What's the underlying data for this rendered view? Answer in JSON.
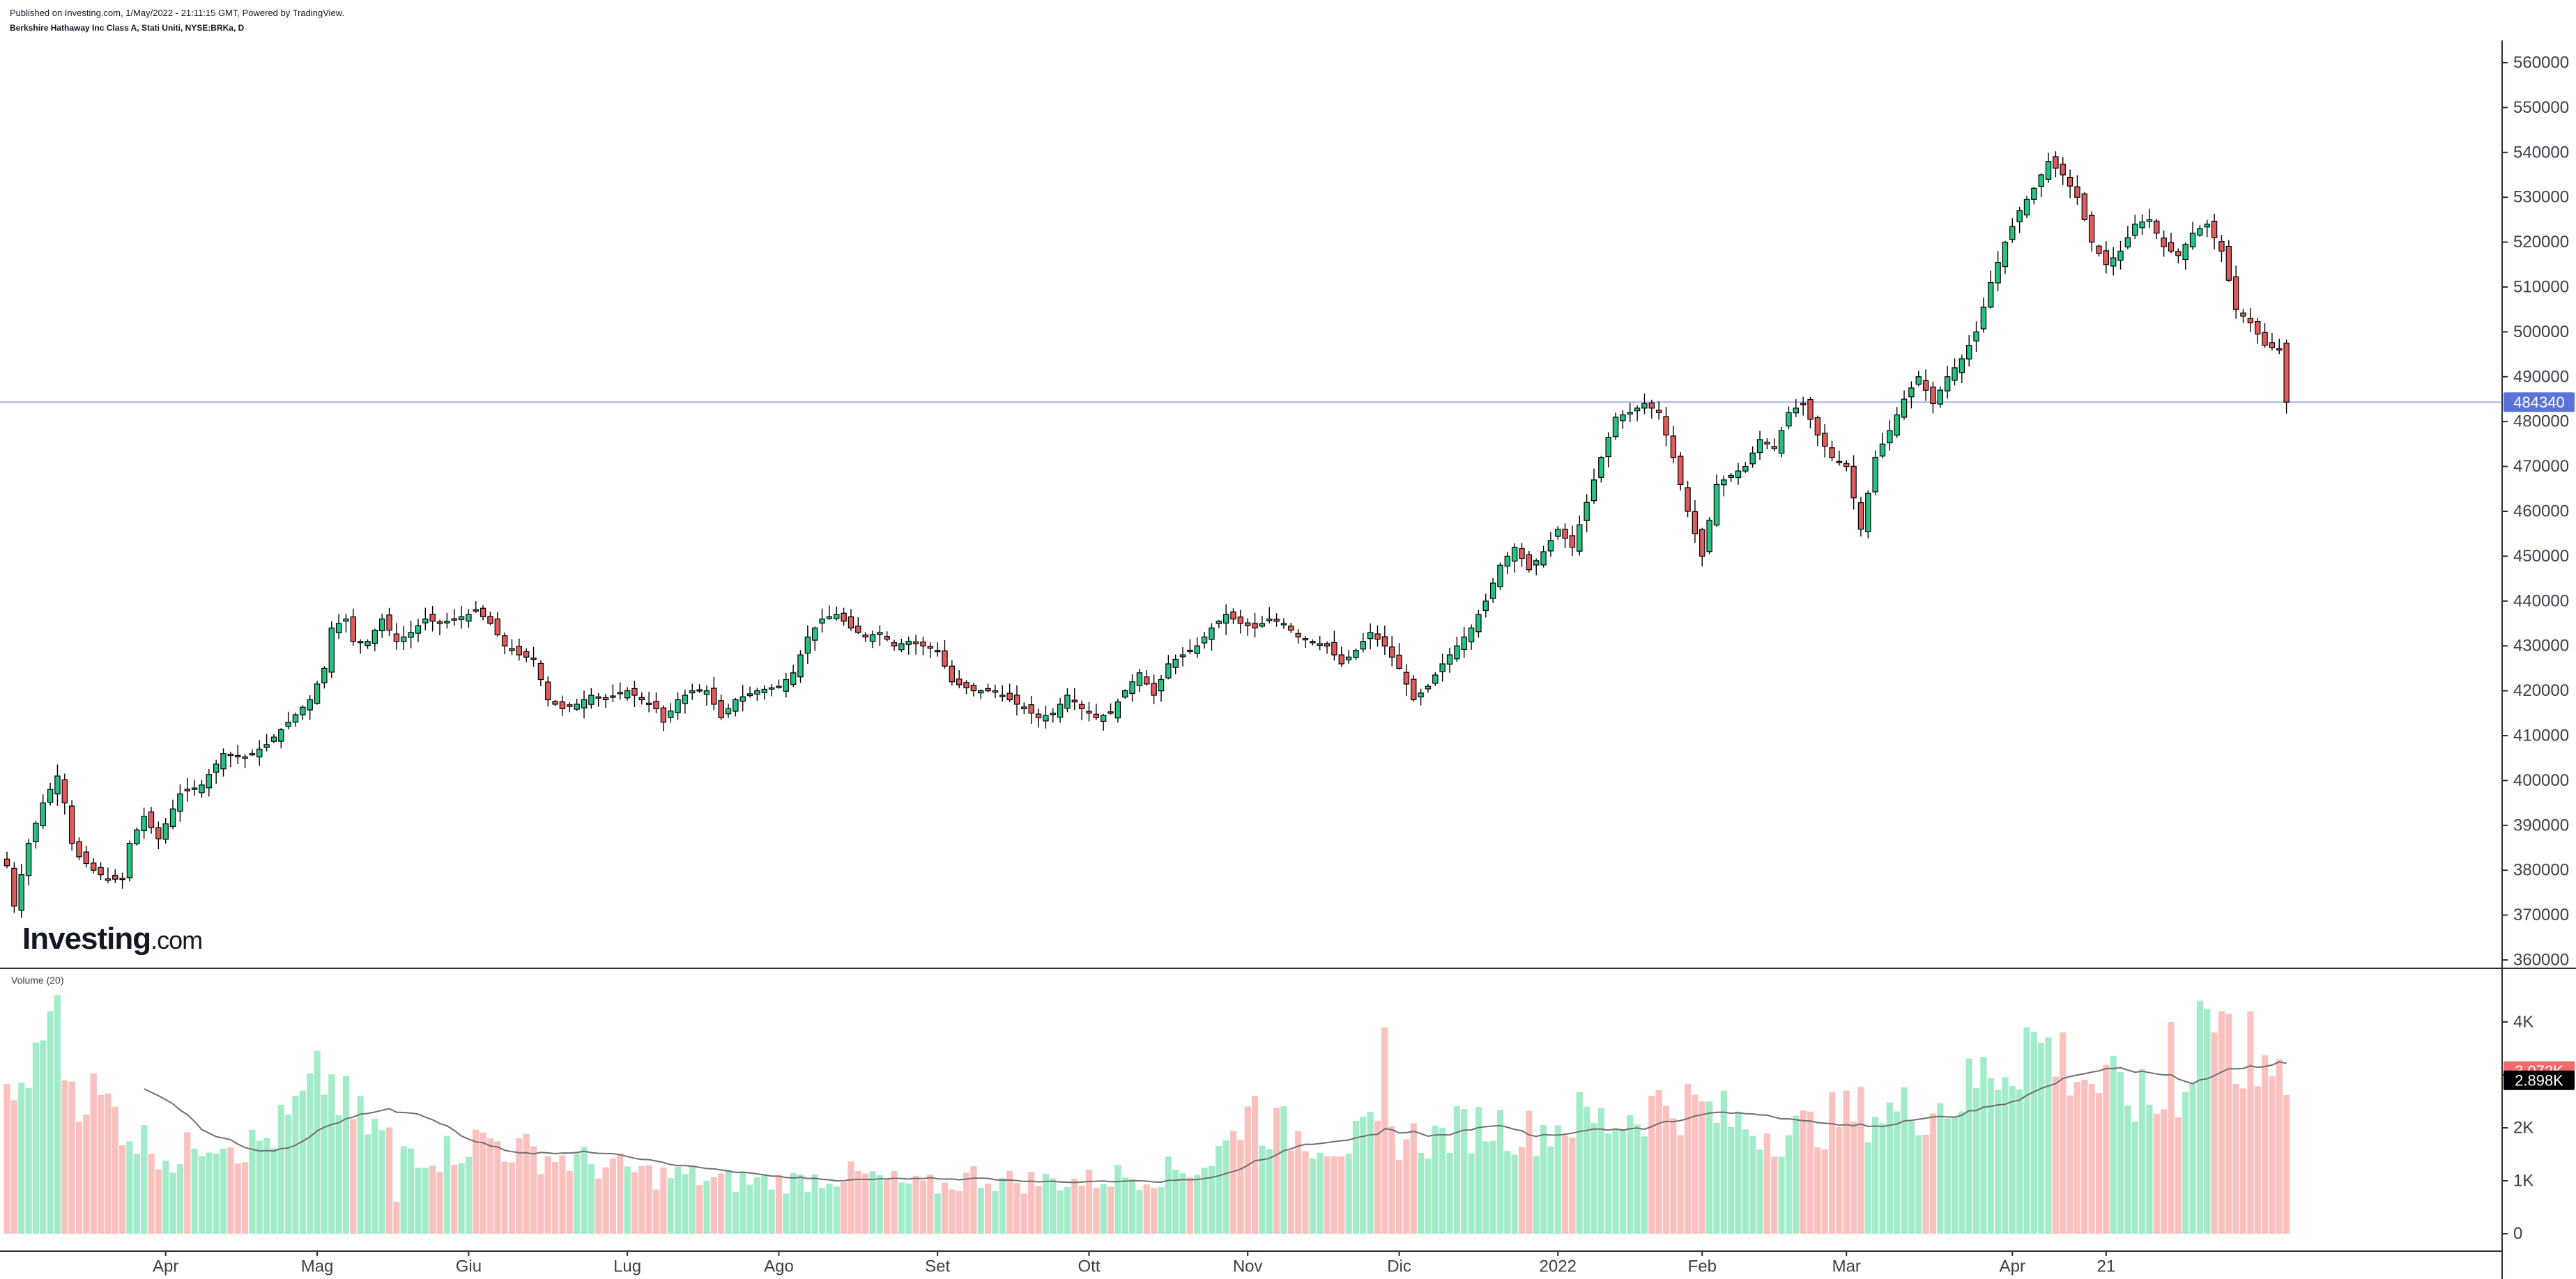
{
  "header": {
    "published": "Published on Investing.com, 1/May/2022 - 21:11:15 GMT, Powered by TradingView.",
    "symbol": "Berkshire Hathaway Inc Class A, Stati Uniti, NYSE:BRKa, D"
  },
  "logo": {
    "brand": "Investing",
    "suffix": ".com"
  },
  "volume_pane": {
    "title": "Volume (20)"
  },
  "colors": {
    "up": "#26c281",
    "down": "#e05c5c",
    "up_volume": "#a3ecc9",
    "down_volume": "#fbc1bf",
    "last_price_line": "#6b7bd8",
    "last_price_badge": "#5b72d6",
    "volume_badge_red": "#f06b6b",
    "volume_badge_black": "#000000"
  },
  "chart_data": {
    "type": "candlestick",
    "price_axis": {
      "min": 360000,
      "max": 560000,
      "ticks": [
        360000,
        370000,
        380000,
        390000,
        400000,
        410000,
        420000,
        430000,
        440000,
        450000,
        460000,
        470000,
        480000,
        490000,
        500000,
        510000,
        520000,
        530000,
        540000,
        550000,
        560000
      ]
    },
    "volume_axis": {
      "ticks": [
        {
          "value": 0,
          "label": "0"
        },
        {
          "value": 1000,
          "label": "1K"
        },
        {
          "value": 2000,
          "label": "2K"
        },
        {
          "value": 3000,
          "label": "3K"
        },
        {
          "value": 4000,
          "label": "4K"
        }
      ]
    },
    "x_labels": [
      {
        "index": 22,
        "label": "Apr"
      },
      {
        "index": 43,
        "label": "Mag"
      },
      {
        "index": 64,
        "label": "Giu"
      },
      {
        "index": 86,
        "label": "Lug"
      },
      {
        "index": 107,
        "label": "Ago"
      },
      {
        "index": 129,
        "label": "Set"
      },
      {
        "index": 150,
        "label": "Ott"
      },
      {
        "index": 172,
        "label": "Nov"
      },
      {
        "index": 193,
        "label": "Dic"
      },
      {
        "index": 215,
        "label": "2022"
      },
      {
        "index": 235,
        "label": "Feb"
      },
      {
        "index": 255,
        "label": "Mar"
      },
      {
        "index": 278,
        "label": "Apr"
      },
      {
        "index": 291,
        "label": "21"
      }
    ],
    "last_price": 484340,
    "last_price_label": "484340",
    "volume_labels": [
      {
        "value": 3072,
        "label": "3.072K"
      },
      {
        "value": 2898,
        "label": "2.898K"
      }
    ],
    "anchors": [
      [
        0,
        381000
      ],
      [
        1,
        372000
      ],
      [
        2,
        379000
      ],
      [
        3,
        386000
      ],
      [
        5,
        395000
      ],
      [
        7,
        401000
      ],
      [
        8,
        395000
      ],
      [
        9,
        386000
      ],
      [
        10,
        383000
      ],
      [
        12,
        380000
      ],
      [
        14,
        378000
      ],
      [
        16,
        378000
      ],
      [
        17,
        386000
      ],
      [
        19,
        392000
      ],
      [
        21,
        387000
      ],
      [
        24,
        397000
      ],
      [
        27,
        399000
      ],
      [
        30,
        406000
      ],
      [
        33,
        405000
      ],
      [
        36,
        408000
      ],
      [
        39,
        413000
      ],
      [
        42,
        418000
      ],
      [
        44,
        425000
      ],
      [
        45,
        434000
      ],
      [
        47,
        436000
      ],
      [
        48,
        431000
      ],
      [
        50,
        431000
      ],
      [
        52,
        436000
      ],
      [
        54,
        431000
      ],
      [
        56,
        433000
      ],
      [
        58,
        436000
      ],
      [
        60,
        435000
      ],
      [
        62,
        436000
      ],
      [
        64,
        437000
      ],
      [
        65,
        438000
      ],
      [
        67,
        435000
      ],
      [
        69,
        430000
      ],
      [
        71,
        428000
      ],
      [
        73,
        427000
      ],
      [
        75,
        418000
      ],
      [
        77,
        416000
      ],
      [
        79,
        417000
      ],
      [
        81,
        419000
      ],
      [
        83,
        418000
      ],
      [
        86,
        420000
      ],
      [
        88,
        418000
      ],
      [
        90,
        416000
      ],
      [
        91,
        413000
      ],
      [
        93,
        418000
      ],
      [
        95,
        420000
      ],
      [
        97,
        420000
      ],
      [
        99,
        414000
      ],
      [
        101,
        418000
      ],
      [
        104,
        420000
      ],
      [
        107,
        421000
      ],
      [
        109,
        424000
      ],
      [
        111,
        432000
      ],
      [
        113,
        436000
      ],
      [
        115,
        437000
      ],
      [
        117,
        434000
      ],
      [
        119,
        432000
      ],
      [
        121,
        433000
      ],
      [
        123,
        430000
      ],
      [
        125,
        431000
      ],
      [
        127,
        430000
      ],
      [
        129,
        429000
      ],
      [
        131,
        422000
      ],
      [
        134,
        420000
      ],
      [
        137,
        420000
      ],
      [
        140,
        417000
      ],
      [
        143,
        414000
      ],
      [
        145,
        415000
      ],
      [
        147,
        419000
      ],
      [
        149,
        416000
      ],
      [
        151,
        414000
      ],
      [
        153,
        415000
      ],
      [
        155,
        420000
      ],
      [
        157,
        424000
      ],
      [
        159,
        419000
      ],
      [
        161,
        426000
      ],
      [
        163,
        428000
      ],
      [
        165,
        430000
      ],
      [
        167,
        434000
      ],
      [
        169,
        437000
      ],
      [
        171,
        435000
      ],
      [
        173,
        434000
      ],
      [
        175,
        436000
      ],
      [
        177,
        435000
      ],
      [
        179,
        432000
      ],
      [
        181,
        431000
      ],
      [
        183,
        430000
      ],
      [
        185,
        426000
      ],
      [
        187,
        429000
      ],
      [
        189,
        433000
      ],
      [
        191,
        430000
      ],
      [
        193,
        425000
      ],
      [
        195,
        418000
      ],
      [
        197,
        421000
      ],
      [
        199,
        426000
      ],
      [
        201,
        430000
      ],
      [
        203,
        434000
      ],
      [
        205,
        440000
      ],
      [
        207,
        448000
      ],
      [
        209,
        452000
      ],
      [
        211,
        447000
      ],
      [
        213,
        451000
      ],
      [
        215,
        456000
      ],
      [
        217,
        452000
      ],
      [
        219,
        462000
      ],
      [
        221,
        472000
      ],
      [
        223,
        481000
      ],
      [
        225,
        482000
      ],
      [
        227,
        484000
      ],
      [
        229,
        482000
      ],
      [
        231,
        472000
      ],
      [
        233,
        460000
      ],
      [
        235,
        450000
      ],
      [
        237,
        466000
      ],
      [
        239,
        468000
      ],
      [
        241,
        470000
      ],
      [
        243,
        476000
      ],
      [
        245,
        474000
      ],
      [
        247,
        482000
      ],
      [
        249,
        484000
      ],
      [
        251,
        477000
      ],
      [
        253,
        472000
      ],
      [
        255,
        470000
      ],
      [
        257,
        456000
      ],
      [
        259,
        472000
      ],
      [
        261,
        478000
      ],
      [
        263,
        485000
      ],
      [
        265,
        490000
      ],
      [
        267,
        484000
      ],
      [
        269,
        490000
      ],
      [
        271,
        494000
      ],
      [
        273,
        500000
      ],
      [
        275,
        511000
      ],
      [
        277,
        520000
      ],
      [
        279,
        527000
      ],
      [
        281,
        532000
      ],
      [
        283,
        538000
      ],
      [
        285,
        535000
      ],
      [
        287,
        530000
      ],
      [
        289,
        520000
      ],
      [
        291,
        515000
      ],
      [
        293,
        518000
      ],
      [
        295,
        524000
      ],
      [
        297,
        525000
      ],
      [
        299,
        519000
      ],
      [
        301,
        517000
      ],
      [
        303,
        522000
      ],
      [
        305,
        524000
      ],
      [
        307,
        518000
      ],
      [
        309,
        505000
      ],
      [
        311,
        502000
      ],
      [
        313,
        497000
      ],
      [
        315,
        496000
      ],
      [
        316,
        484340
      ]
    ],
    "volume_anchors": [
      [
        0,
        2500
      ],
      [
        4,
        3100
      ],
      [
        6,
        4200
      ],
      [
        9,
        2900
      ],
      [
        12,
        2600
      ],
      [
        15,
        2300
      ],
      [
        18,
        1800
      ],
      [
        20,
        1700
      ],
      [
        22,
        1500
      ],
      [
        24,
        1300
      ],
      [
        26,
        1800
      ],
      [
        30,
        1900
      ],
      [
        33,
        1600
      ],
      [
        36,
        1800
      ],
      [
        38,
        2000
      ],
      [
        40,
        2300
      ],
      [
        42,
        2600
      ],
      [
        44,
        3000
      ],
      [
        46,
        2600
      ],
      [
        48,
        2200
      ],
      [
        52,
        1900
      ],
      [
        56,
        1600
      ],
      [
        60,
        1500
      ],
      [
        64,
        1700
      ],
      [
        67,
        1800
      ],
      [
        70,
        1600
      ],
      [
        74,
        1500
      ],
      [
        78,
        1400
      ],
      [
        82,
        1300
      ],
      [
        86,
        1200
      ],
      [
        90,
        1100
      ],
      [
        94,
        1100
      ],
      [
        98,
        1000
      ],
      [
        102,
        1000
      ],
      [
        106,
        1000
      ],
      [
        110,
        1000
      ],
      [
        114,
        1100
      ],
      [
        118,
        1100
      ],
      [
        122,
        1000
      ],
      [
        126,
        900
      ],
      [
        130,
        900
      ],
      [
        134,
        1100
      ],
      [
        138,
        1000
      ],
      [
        142,
        1000
      ],
      [
        146,
        1000
      ],
      [
        150,
        1000
      ],
      [
        154,
        1100
      ],
      [
        158,
        1100
      ],
      [
        162,
        1200
      ],
      [
        166,
        1300
      ],
      [
        170,
        1800
      ],
      [
        172,
        2600
      ],
      [
        174,
        2100
      ],
      [
        178,
        1900
      ],
      [
        182,
        1800
      ],
      [
        186,
        1700
      ],
      [
        190,
        1900
      ],
      [
        194,
        1800
      ],
      [
        198,
        1800
      ],
      [
        202,
        2000
      ],
      [
        206,
        2100
      ],
      [
        210,
        1900
      ],
      [
        214,
        2000
      ],
      [
        218,
        2200
      ],
      [
        222,
        2100
      ],
      [
        226,
        2300
      ],
      [
        230,
        2500
      ],
      [
        234,
        2400
      ],
      [
        238,
        2200
      ],
      [
        242,
        2000
      ],
      [
        246,
        1900
      ],
      [
        250,
        2000
      ],
      [
        254,
        2200
      ],
      [
        258,
        2300
      ],
      [
        262,
        2300
      ],
      [
        266,
        2400
      ],
      [
        270,
        2500
      ],
      [
        274,
        3000
      ],
      [
        278,
        3300
      ],
      [
        282,
        3600
      ],
      [
        286,
        3200
      ],
      [
        290,
        2800
      ],
      [
        294,
        2600
      ],
      [
        298,
        2400
      ],
      [
        302,
        2900
      ],
      [
        304,
        4000
      ],
      [
        306,
        3800
      ],
      [
        308,
        3600
      ],
      [
        310,
        3300
      ],
      [
        312,
        2900
      ],
      [
        314,
        2700
      ],
      [
        316,
        3072
      ]
    ],
    "volume_outliers": [
      [
        6,
        4200
      ],
      [
        54,
        600
      ],
      [
        191,
        3900
      ],
      [
        280,
        3900
      ],
      [
        300,
        4000
      ],
      [
        304,
        4400
      ],
      [
        305,
        4250
      ],
      [
        306,
        3800
      ],
      [
        307,
        4200
      ],
      [
        311,
        4200
      ]
    ]
  }
}
